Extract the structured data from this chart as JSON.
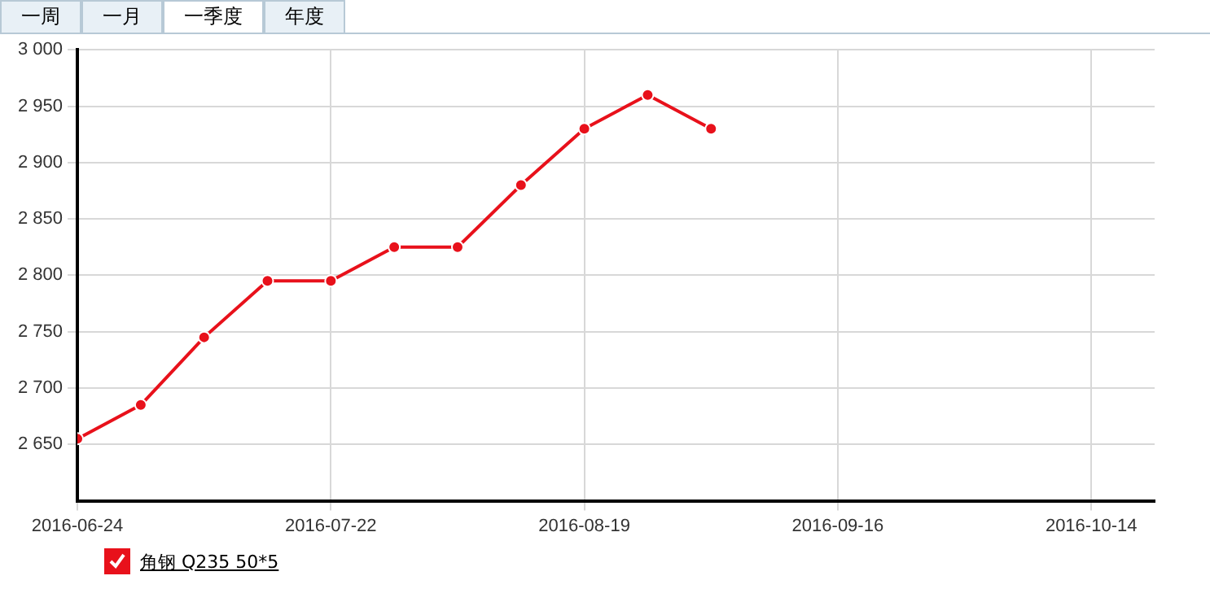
{
  "chart_data": {
    "type": "line",
    "annotations": [
      "一周",
      "一月",
      "一季度",
      "年度"
    ],
    "x": [
      "2016-06-24",
      "2016-07-01",
      "2016-07-08",
      "2016-07-15",
      "2016-07-22",
      "2016-07-29",
      "2016-08-05",
      "2016-08-12",
      "2016-08-19",
      "2016-08-26",
      "2016-09-02"
    ],
    "series": [
      {
        "name": "角钢 Q235 50*5",
        "color": "#e8111b",
        "values": [
          2655,
          2685,
          2745,
          2795,
          2795,
          2825,
          2825,
          2880,
          2930,
          2960,
          2930
        ]
      }
    ],
    "xlim": [
      "2016-06-24",
      "2016-10-21"
    ],
    "xticks": [
      "2016-06-24",
      "2016-07-22",
      "2016-08-19",
      "2016-09-16",
      "2016-10-14"
    ],
    "ylim": [
      2600,
      3000
    ],
    "yticks": [
      {
        "value": 2650,
        "label": "2 650"
      },
      {
        "value": 2700,
        "label": "2 700"
      },
      {
        "value": 2750,
        "label": "2 750"
      },
      {
        "value": 2800,
        "label": "2 800"
      },
      {
        "value": 2850,
        "label": "2 850"
      },
      {
        "value": 2900,
        "label": "2 900"
      },
      {
        "value": 2950,
        "label": "2 950"
      },
      {
        "value": 3000,
        "label": "3 000"
      }
    ],
    "grid": true,
    "legend": "bottom left",
    "marker": "circle",
    "line_style": "solid"
  }
}
